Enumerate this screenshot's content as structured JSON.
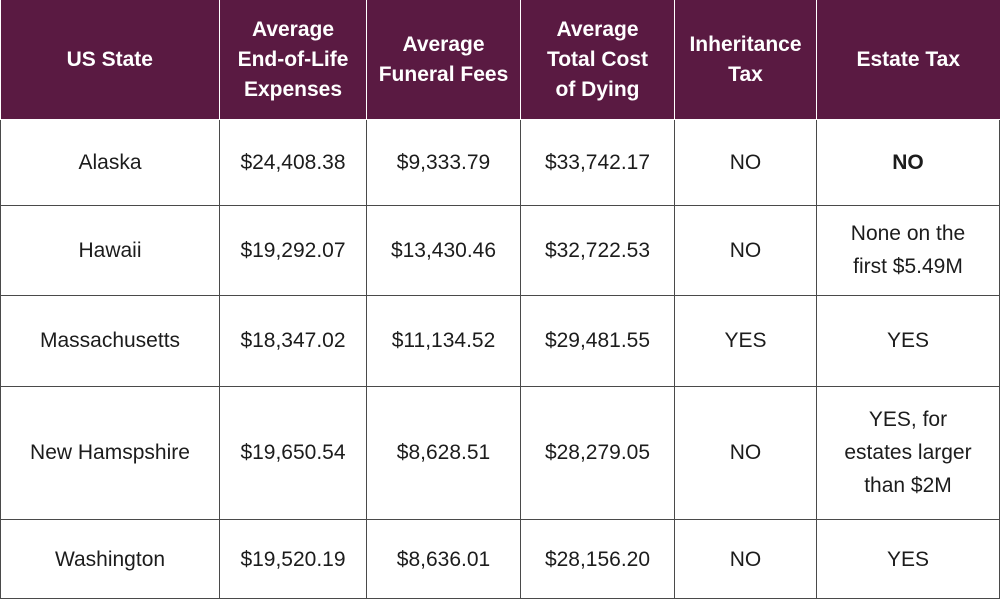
{
  "headers": {
    "state": [
      "US State"
    ],
    "end_of_life": [
      "Average",
      "End-of-Life",
      "Expenses"
    ],
    "funeral": [
      "Average",
      "Funeral Fees"
    ],
    "total": [
      "Average",
      "Total Cost",
      "of Dying"
    ],
    "inheritance": [
      "Inheritance",
      "Tax"
    ],
    "estate": [
      "Estate Tax"
    ]
  },
  "rows": [
    {
      "state": "Alaska",
      "end_of_life": "$24,408.38",
      "funeral": "$9,333.79",
      "total": "$33,742.17",
      "inheritance": "NO",
      "estate": [
        "NO"
      ]
    },
    {
      "state": "Hawaii",
      "end_of_life": "$19,292.07",
      "funeral": "$13,430.46",
      "total": "$32,722.53",
      "inheritance": "NO",
      "estate": [
        "None on the",
        "first $5.49M"
      ]
    },
    {
      "state": "Massachusetts",
      "end_of_life": "$18,347.02",
      "funeral": "$11,134.52",
      "total": "$29,481.55",
      "inheritance": "YES",
      "estate": [
        "YES"
      ]
    },
    {
      "state": "New Hamspshire",
      "end_of_life": "$19,650.54",
      "funeral": "$8,628.51",
      "total": "$28,279.05",
      "inheritance": "NO",
      "estate": [
        "YES, for",
        "estates larger",
        "than $2M"
      ]
    },
    {
      "state": "Washington",
      "end_of_life": "$19,520.19",
      "funeral": "$8,636.01",
      "total": "$28,156.20",
      "inheritance": "NO",
      "estate": [
        "YES"
      ]
    }
  ],
  "colors": {
    "header_bg": "#5a1a42",
    "header_text": "#ffffff",
    "body_text": "#1c1c1c",
    "grid": "#4a4a4a"
  }
}
